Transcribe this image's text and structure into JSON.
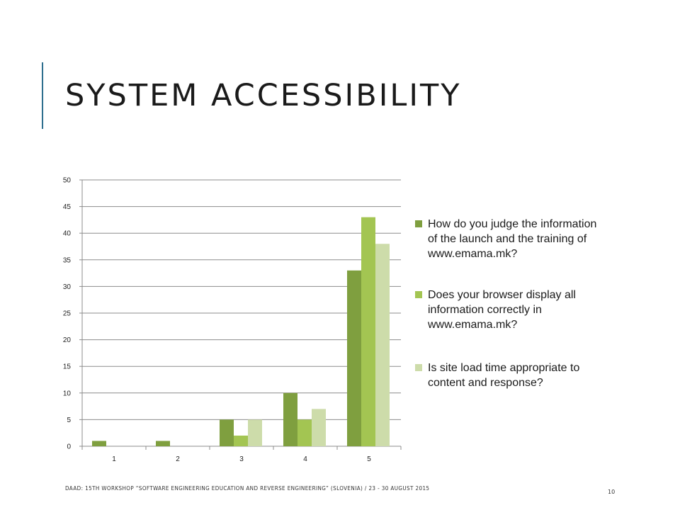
{
  "slide": {
    "title": "SYSTEM ACCESSIBILITY",
    "footer": "DAAD: 15TH WORKSHOP “SOFTWARE ENGINEERING EDUCATION AND REVERSE ENGINEERING” (SLOVENIA) / 23 - 30 AUGUST 2015",
    "page_number": "10",
    "accent_color": "#2e6f8e"
  },
  "chart_data": {
    "type": "bar",
    "title": "",
    "xlabel": "",
    "ylabel": "",
    "categories": [
      "1",
      "2",
      "3",
      "4",
      "5"
    ],
    "ylim": [
      0,
      50
    ],
    "yticks": [
      0,
      5,
      10,
      15,
      20,
      25,
      30,
      35,
      40,
      45,
      50
    ],
    "grid": true,
    "legend_position": "right",
    "series": [
      {
        "name": "How do you judge the information of the launch and the training of www.emama.mk?",
        "color": "#7f9f3f",
        "values": [
          1,
          1,
          5,
          10,
          33
        ]
      },
      {
        "name": "Does your browser display all information correctly in www.emama.mk?",
        "color": "#a3c552",
        "values": [
          0,
          0,
          2,
          5,
          43
        ]
      },
      {
        "name": "Is site load time appropriate to content and response?",
        "color": "#cddcaa",
        "values": [
          0,
          0,
          5,
          7,
          38
        ]
      }
    ]
  }
}
